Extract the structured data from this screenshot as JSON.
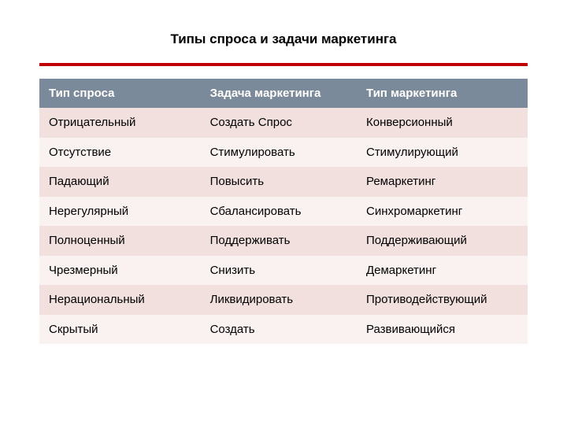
{
  "title": "Типы спроса и задачи маркетинга",
  "table": {
    "columns": [
      "Тип спроса",
      "Задача маркетинга",
      "Тип маркетинга"
    ],
    "rows": [
      [
        "Отрицательный",
        "Создать Спрос",
        "Конверсионный"
      ],
      [
        "Отсутствие",
        "Стимулировать",
        "Стимулирующий"
      ],
      [
        "Падающий",
        "Повысить",
        "Ремаркетинг"
      ],
      [
        "Нерегулярный",
        "Сбалансировать",
        "Синхромаркетинг"
      ],
      [
        "Полноценный",
        "Поддерживать",
        "Поддерживающий"
      ],
      [
        "Чрезмерный",
        "Снизить",
        "Демаркетинг"
      ],
      [
        "Нерациональный",
        "Ликвидировать",
        "Противодействующий"
      ],
      [
        "Скрытый",
        "Создать",
        "Развивающийся"
      ]
    ],
    "header_bg": "#7b8a9a",
    "header_fg": "#ffffff",
    "row_odd_bg": "#f1e0de",
    "row_even_bg": "#f9f2f1",
    "accent_line_color": "#c00000",
    "title_fontsize": 17,
    "cell_fontsize": 15
  }
}
